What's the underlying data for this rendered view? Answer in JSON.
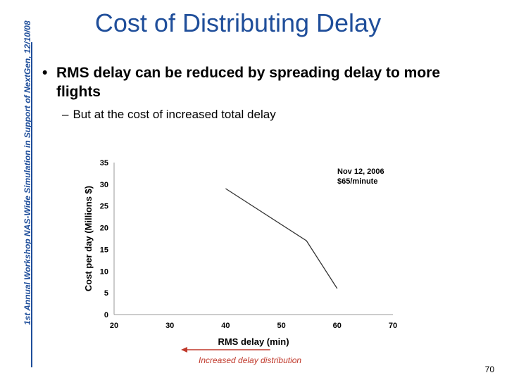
{
  "slide": {
    "title": "Cost of Distributing Delay",
    "side_text": "1st Annual Workshop NAS-Wide Simulation in Support of NextGen, 12/10/08",
    "bullet": "RMS delay can be reduced by spreading delay to more flights",
    "subbullet": "But at the cost of increased total delay",
    "annotation_line1": "Nov 12, 2006",
    "annotation_line2": "$65/minute",
    "arrow_caption": "Increased delay distribution",
    "page_number": "70"
  },
  "chart_data": {
    "type": "line",
    "xlabel": "RMS delay (min)",
    "ylabel": "Cost per day (Millions $)",
    "xlim": [
      20,
      70
    ],
    "ylim": [
      0,
      35
    ],
    "xticks": [
      "20",
      "30",
      "40",
      "50",
      "60",
      "70"
    ],
    "yticks": [
      "0",
      "5",
      "10",
      "15",
      "20",
      "25",
      "30",
      "35"
    ],
    "grid": false,
    "series": [
      {
        "x": [
          40,
          54.5,
          60
        ],
        "y": [
          29,
          17,
          6
        ]
      }
    ],
    "line_color": "#333333",
    "arrow_color": "#c0392b"
  }
}
